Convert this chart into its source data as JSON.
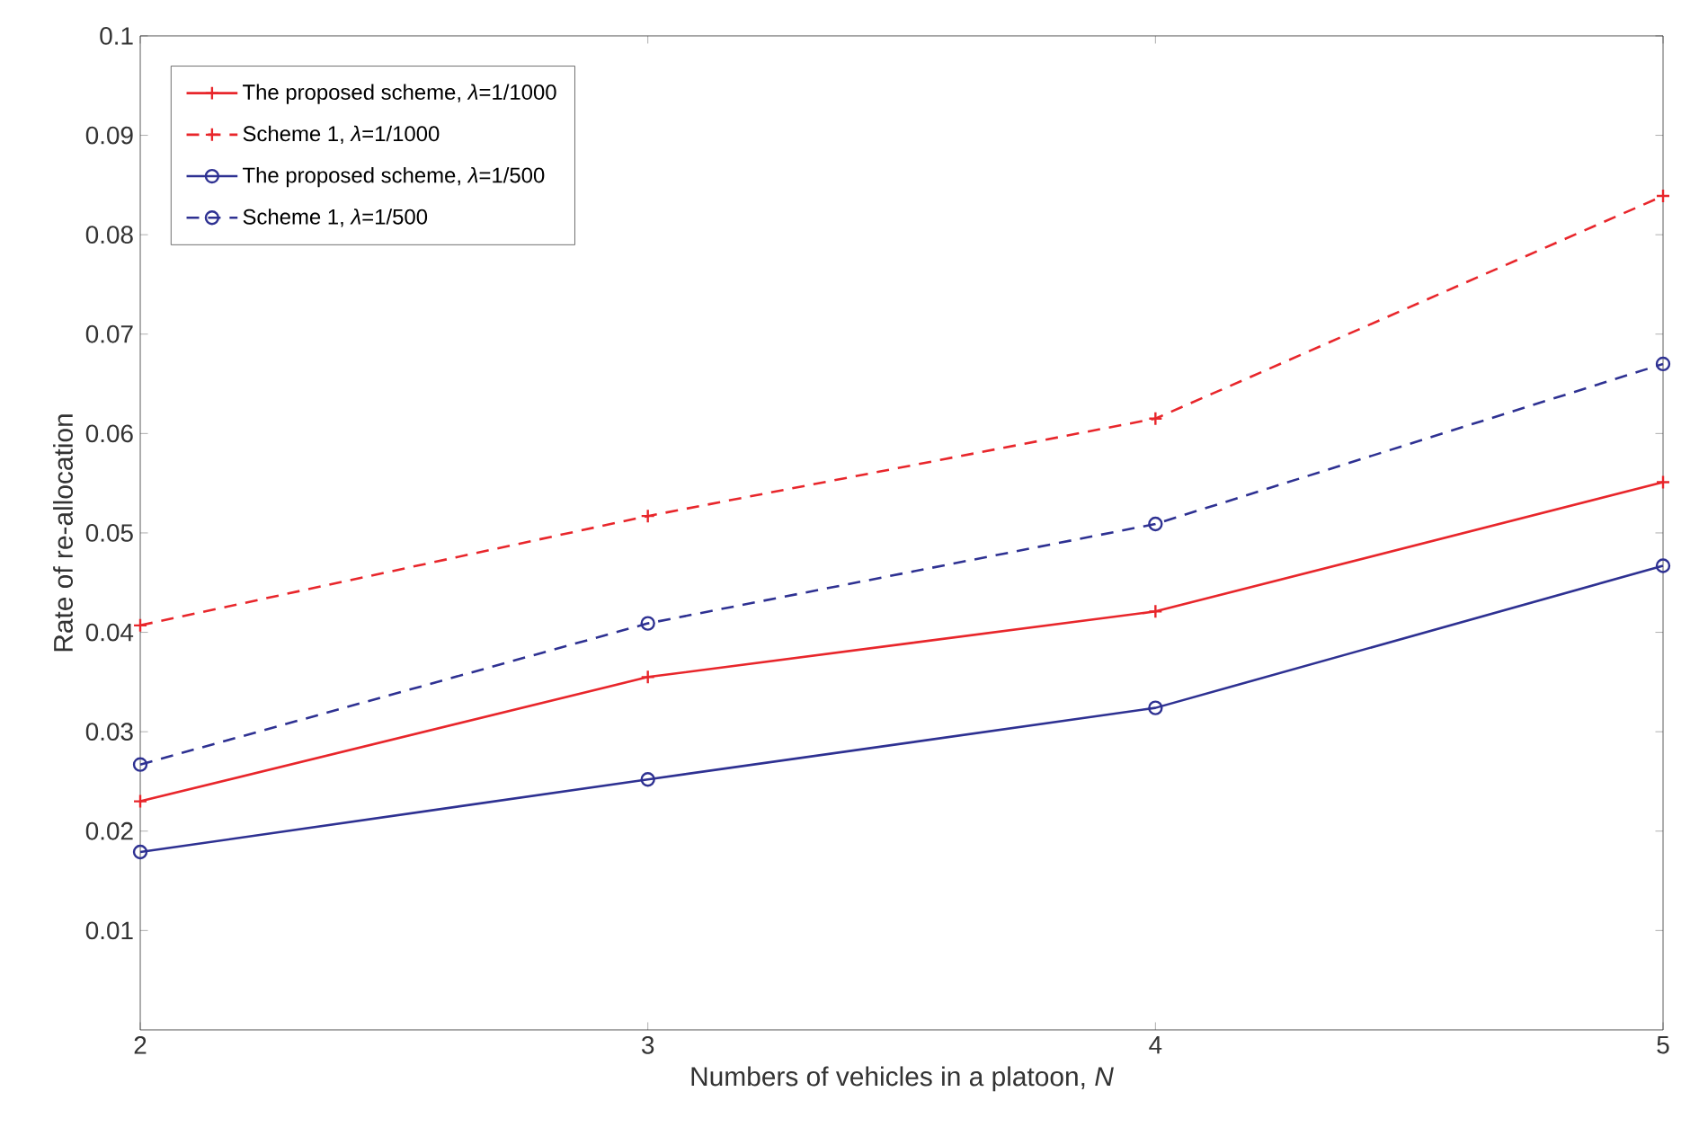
{
  "chart_data": {
    "type": "line",
    "xlabel": "Numbers of vehicles in a platoon, *N*",
    "ylabel": "Rate of re-allocation",
    "x": [
      2,
      3,
      4,
      5
    ],
    "series": [
      {
        "name": "The proposed scheme, *λ*=1/1000",
        "color": "#e8262b",
        "marker": "cross",
        "line_style": "solid",
        "values": [
          0.023,
          0.0355,
          0.0421,
          0.0551
        ]
      },
      {
        "name": "Scheme 1, *λ*=1/1000",
        "color": "#e8262b",
        "marker": "cross",
        "line_style": "dashed",
        "values": [
          0.0407,
          0.0517,
          0.0615,
          0.0839
        ]
      },
      {
        "name": "The proposed scheme, *λ*=1/500",
        "color": "#2e3192",
        "marker": "circle",
        "line_style": "solid",
        "values": [
          0.0179,
          0.0252,
          0.0324,
          0.0467
        ]
      },
      {
        "name": "Scheme 1, *λ*=1/500",
        "color": "#2e3192",
        "marker": "circle",
        "line_style": "dashed",
        "values": [
          0.0267,
          0.0409,
          0.0509,
          0.067
        ]
      }
    ],
    "xlim": [
      2,
      5
    ],
    "ylim": [
      0,
      0.1
    ],
    "xticks": [
      2,
      3,
      4,
      5
    ],
    "yticks": [
      0.01,
      0.02,
      0.03,
      0.04,
      0.05,
      0.06,
      0.07,
      0.08,
      0.09,
      0.1
    ],
    "grid": false,
    "legend": "top left"
  }
}
